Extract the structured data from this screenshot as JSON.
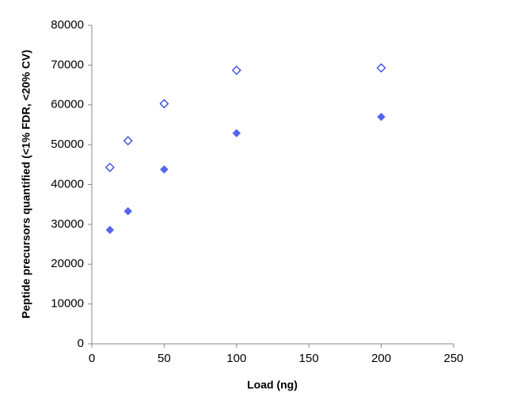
{
  "chart_data": {
    "type": "scatter",
    "xlabel": "Load (ng)",
    "ylabel": "Peptide precursors quantified (<1% FDR, <20% CV)",
    "xlim": [
      0,
      250
    ],
    "xticks": [
      0,
      50,
      100,
      150,
      200,
      250
    ],
    "ylim": [
      0,
      80000
    ],
    "yticks": [
      0,
      10000,
      20000,
      30000,
      40000,
      50000,
      60000,
      70000,
      80000
    ],
    "grid": false,
    "series": [
      {
        "color": "#2f3fe6",
        "filled": false,
        "x": [
          12.5,
          25,
          50,
          100,
          200
        ],
        "values": [
          44300,
          51000,
          60300,
          68700,
          69300
        ]
      },
      {
        "color": "#5566ee",
        "filled": true,
        "x": [
          12.5,
          25,
          50,
          100,
          200
        ],
        "values": [
          28600,
          33300,
          43800,
          52900,
          57000
        ]
      }
    ]
  }
}
